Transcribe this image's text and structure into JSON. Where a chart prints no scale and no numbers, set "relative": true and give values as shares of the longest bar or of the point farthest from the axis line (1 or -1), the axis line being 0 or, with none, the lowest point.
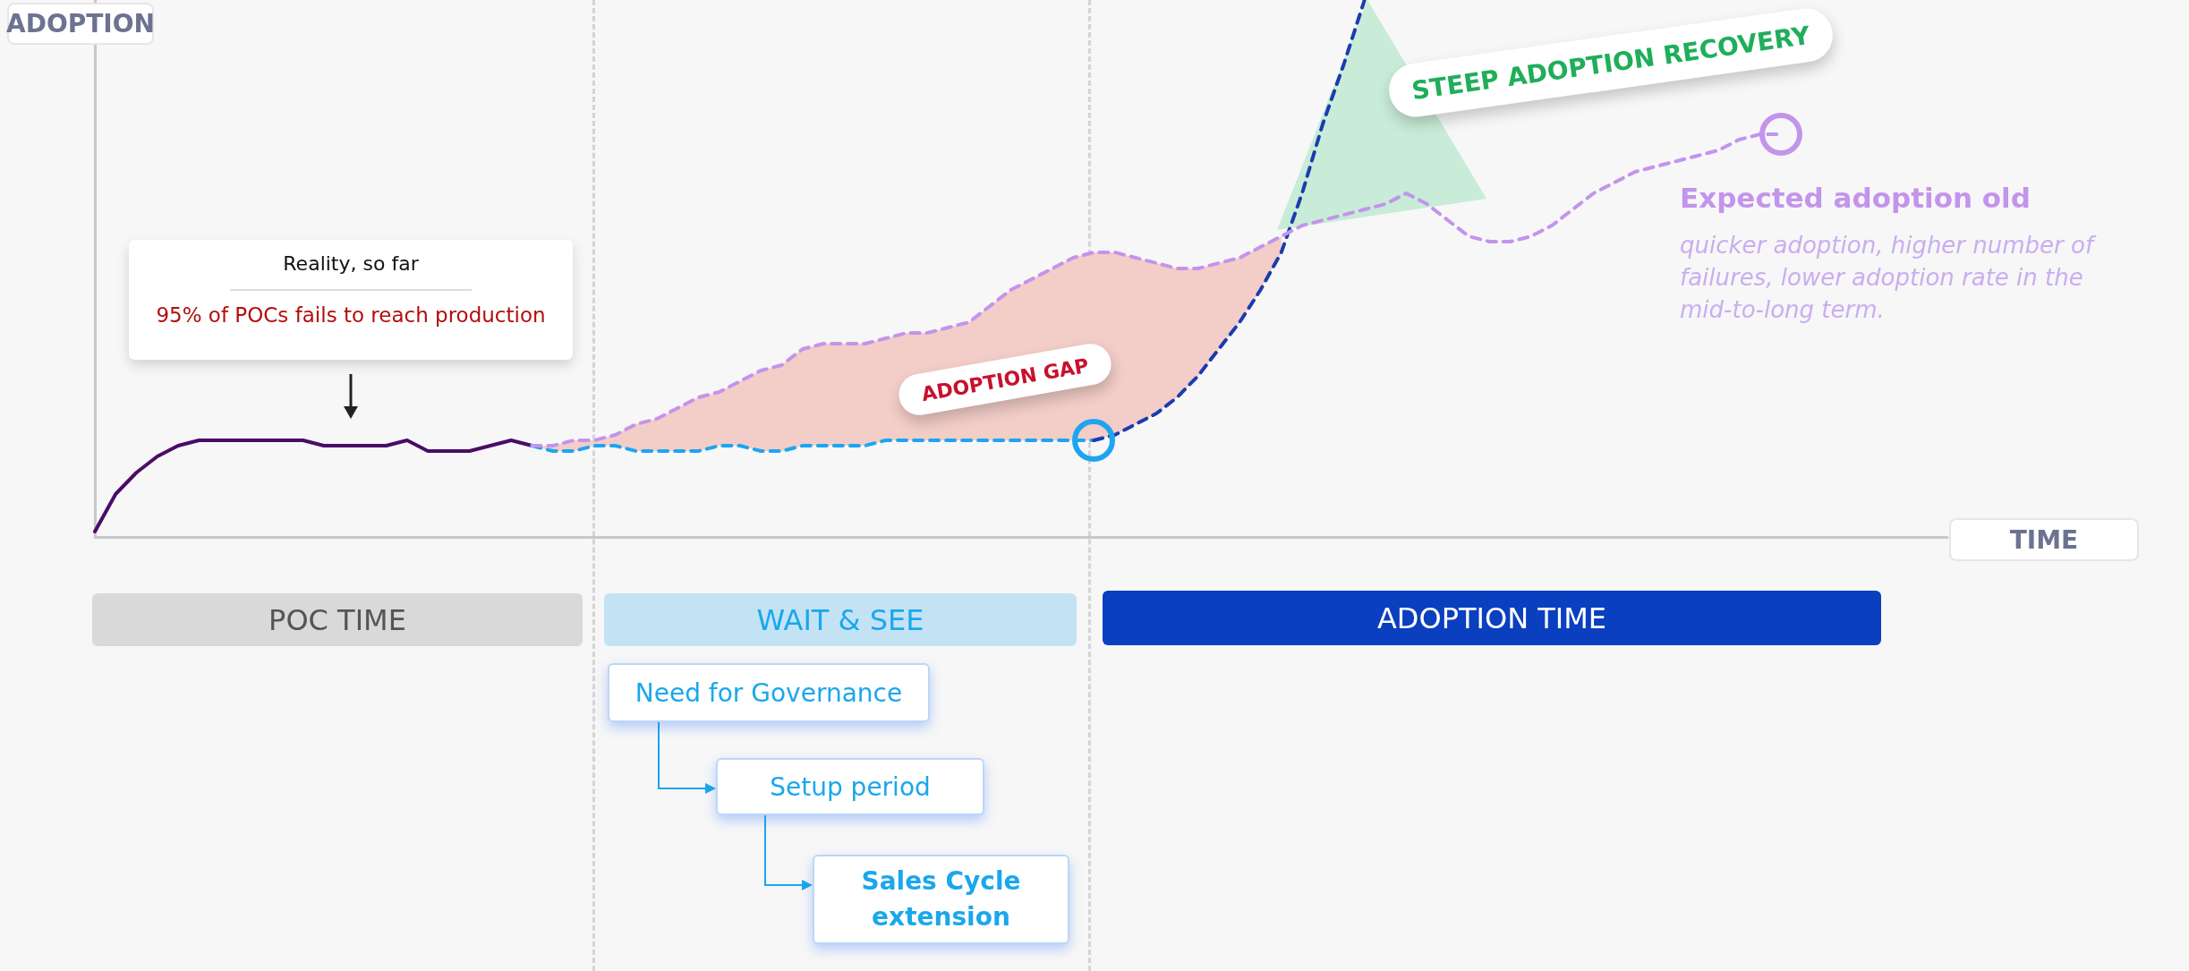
{
  "chart_data": {
    "type": "line",
    "relative": true,
    "xlabel": "TIME",
    "ylabel": "ADOPTION",
    "legend": "right",
    "grid": false,
    "marker": "none",
    "categories": [
      null,
      null,
      null,
      null,
      null,
      null,
      null,
      null,
      null,
      null,
      null,
      null,
      null,
      null,
      null,
      null,
      null,
      null,
      null,
      null,
      null,
      null,
      null,
      null,
      null,
      null,
      null,
      null,
      null,
      null,
      null,
      null,
      null,
      null,
      null,
      null,
      null,
      null,
      null,
      null,
      null,
      null,
      null,
      null,
      null,
      null,
      null,
      null,
      null,
      null,
      null,
      null,
      null,
      null,
      null,
      null,
      null,
      null,
      null,
      null,
      null,
      null,
      null,
      null,
      null,
      null,
      null,
      null,
      null,
      null,
      null,
      null,
      null,
      null,
      null,
      null,
      null,
      null,
      null,
      null,
      null,
      null,
      null,
      null,
      null,
      null,
      null,
      null,
      null,
      null
    ],
    "series": [
      {
        "color": "#4a0d67",
        "line_style": "solid",
        "values": [
          0.01,
          0.08,
          0.12,
          0.15,
          0.17,
          0.18,
          0.18,
          0.18,
          0.18,
          0.18,
          0.18,
          0.17,
          0.17,
          0.17,
          0.17,
          0.18,
          0.16,
          0.16,
          0.16,
          0.17,
          0.18,
          0.17,
          null,
          null,
          null,
          null,
          null,
          null,
          null,
          null,
          null,
          null,
          null,
          null,
          null,
          null,
          null,
          null,
          null,
          null,
          null,
          null,
          null,
          null,
          null,
          null,
          null,
          null,
          null,
          null,
          null,
          null,
          null,
          null,
          null,
          null,
          null,
          null,
          null,
          null,
          null,
          null,
          null,
          null,
          null,
          null,
          null,
          null,
          null,
          null,
          null,
          null,
          null,
          null,
          null,
          null,
          null,
          null,
          null,
          null,
          null,
          null,
          null,
          null,
          null,
          null,
          null,
          null,
          null,
          null
        ]
      },
      {
        "color": "#1ea5f0",
        "line_style": "dashed",
        "values": [
          null,
          null,
          null,
          null,
          null,
          null,
          null,
          null,
          null,
          null,
          null,
          null,
          null,
          null,
          null,
          null,
          null,
          null,
          null,
          null,
          null,
          0.17,
          0.16,
          0.16,
          0.17,
          0.17,
          0.16,
          0.16,
          0.16,
          0.16,
          0.17,
          0.17,
          0.16,
          0.16,
          0.17,
          0.17,
          0.17,
          0.17,
          0.18,
          0.18,
          0.18,
          0.18,
          0.18,
          0.18,
          0.18,
          0.18,
          0.18,
          0.18,
          0.18,
          null,
          null,
          null,
          null,
          null,
          null,
          null,
          null,
          null,
          null,
          null,
          null,
          null,
          null,
          null,
          null,
          null,
          null,
          null,
          null,
          null,
          null,
          null,
          null,
          null,
          null,
          null,
          null,
          null,
          null,
          null,
          null,
          null,
          null,
          null,
          null,
          null,
          null,
          null,
          null,
          null
        ]
      },
      {
        "color": "#1a3cb0",
        "line_style": "dashed",
        "values": [
          null,
          null,
          null,
          null,
          null,
          null,
          null,
          null,
          null,
          null,
          null,
          null,
          null,
          null,
          null,
          null,
          null,
          null,
          null,
          null,
          null,
          null,
          null,
          null,
          null,
          null,
          null,
          null,
          null,
          null,
          null,
          null,
          null,
          null,
          null,
          null,
          null,
          null,
          null,
          null,
          null,
          null,
          null,
          null,
          null,
          null,
          null,
          null,
          0.18,
          0.19,
          0.21,
          0.23,
          0.26,
          0.3,
          0.35,
          0.4,
          0.46,
          0.53,
          0.64,
          0.77,
          0.88,
          1,
          null,
          null,
          null,
          null,
          null,
          null,
          null,
          null,
          null,
          null,
          null,
          null,
          null,
          null,
          null,
          null,
          null,
          null,
          null,
          null,
          null,
          null,
          null,
          null,
          null,
          null,
          null,
          null
        ]
      },
      {
        "name": "Expected adoption old",
        "color": "#c394ec",
        "line_style": "dashed",
        "values": [
          null,
          null,
          null,
          null,
          null,
          null,
          null,
          null,
          null,
          null,
          null,
          null,
          null,
          null,
          null,
          null,
          null,
          null,
          null,
          null,
          null,
          0.17,
          0.17,
          0.18,
          0.18,
          0.19,
          0.21,
          0.22,
          0.24,
          0.26,
          0.27,
          0.29,
          0.31,
          0.32,
          0.35,
          0.36,
          0.36,
          0.36,
          0.37,
          0.38,
          0.38,
          0.39,
          0.4,
          0.43,
          0.46,
          0.48,
          0.5,
          0.52,
          0.53,
          0.53,
          0.52,
          0.51,
          0.5,
          0.5,
          0.51,
          0.52,
          0.54,
          0.56,
          0.58,
          0.59,
          0.6,
          0.61,
          0.62,
          0.64,
          0.62,
          0.59,
          0.56,
          0.55,
          0.55,
          0.56,
          0.58,
          0.61,
          0.64,
          0.66,
          0.68,
          0.69,
          0.7,
          0.71,
          0.72,
          0.74,
          0.75,
          0.75,
          null,
          null,
          null,
          null,
          null,
          null,
          null,
          null
        ],
        "lower": [
          null,
          null,
          null,
          null,
          null,
          null,
          null,
          null,
          null,
          null,
          null,
          null,
          null,
          null,
          null,
          null,
          null,
          null,
          null,
          null,
          null,
          0.17,
          0.16,
          0.16,
          0.17,
          0.17,
          0.16,
          0.16,
          0.16,
          0.16,
          0.17,
          0.17,
          0.16,
          0.16,
          0.17,
          0.17,
          0.17,
          0.17,
          0.18,
          0.18,
          0.18,
          0.18,
          0.18,
          0.18,
          0.18,
          0.18,
          0.18,
          0.18,
          0.18,
          0.19,
          0.21,
          0.23,
          0.26,
          0.3,
          0.35,
          0.4,
          0.46,
          0.53,
          null,
          null,
          null,
          null,
          null,
          null,
          null,
          null,
          null,
          null,
          null,
          null,
          null,
          null,
          null,
          null,
          null,
          null,
          null,
          null,
          null,
          null,
          null,
          null,
          null,
          null,
          null,
          null,
          null,
          null,
          null,
          null
        ],
        "upper": [
          null,
          null,
          null,
          null,
          null,
          null,
          null,
          null,
          null,
          null,
          null,
          null,
          null,
          null,
          null,
          null,
          null,
          null,
          null,
          null,
          null,
          0.17,
          0.17,
          0.18,
          0.18,
          0.19,
          0.21,
          0.22,
          0.24,
          0.26,
          0.27,
          0.29,
          0.31,
          0.32,
          0.35,
          0.36,
          0.36,
          0.36,
          0.37,
          0.38,
          0.38,
          0.39,
          0.4,
          0.43,
          0.46,
          0.48,
          0.5,
          0.52,
          0.53,
          0.53,
          0.52,
          0.51,
          0.5,
          0.5,
          0.51,
          0.52,
          0.54,
          0.56,
          null,
          null,
          null,
          null,
          null,
          null,
          null,
          null,
          null,
          null,
          null,
          null,
          null,
          null,
          null,
          null,
          null,
          null,
          null,
          null,
          null,
          null,
          null,
          null,
          null,
          null,
          null,
          null,
          null,
          null,
          null,
          null
        ]
      }
    ],
    "annotations": [
      "Reality, so far",
      "95% of POCs fails to reach production",
      "ADOPTION GAP",
      "STEEP ADOPTION RECOVERY",
      "quicker adoption, higher number of failures, lower adoption rate in the mid-to-long term.",
      "POC TIME",
      "WAIT & SEE",
      "ADOPTION TIME",
      "Need for Governance",
      "Setup period",
      "Sales Cycle extension"
    ]
  }
}
